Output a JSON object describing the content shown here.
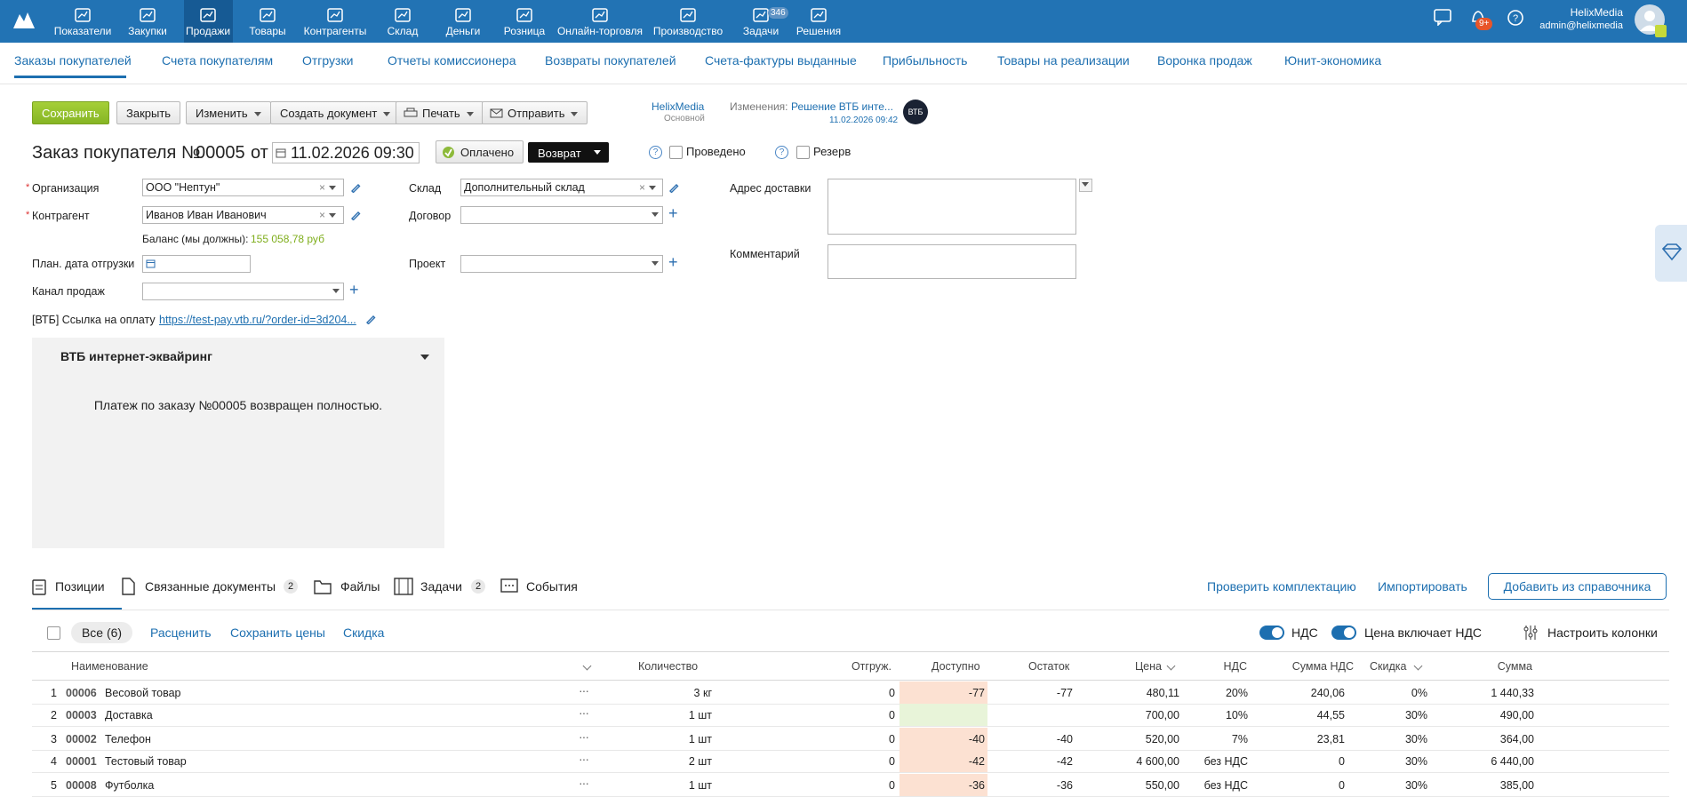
{
  "top_nav": {
    "items": [
      "Показатели",
      "Закупки",
      "Продажи",
      "Товары",
      "Контрагенты",
      "Склад",
      "Деньги",
      "Розница",
      "Онлайн-торговля",
      "Производство",
      "Задачи",
      "Решения"
    ],
    "tasks_badge": "346",
    "notifications_badge": "9+",
    "user_name": "HelixMedia",
    "user_email": "admin@helixmedia"
  },
  "sub_nav": [
    "Заказы покупателей",
    "Счета покупателям",
    "Отгрузки",
    "Отчеты комиссионера",
    "Возвраты покупателей",
    "Счета-фактуры выданные",
    "Прибыльность",
    "Товары на реализации",
    "Воронка продаж",
    "Юнит-экономика"
  ],
  "toolbar": {
    "save": "Сохранить",
    "close": "Закрыть",
    "edit": "Изменить",
    "create_document": "Создать документ",
    "print": "Печать",
    "send": "Отправить",
    "org_name": "HelixMedia",
    "org_sub": "Основной",
    "changes_label": "Изменения:",
    "changes_value": "Решение ВТБ инте...",
    "changes_date": "11.02.2026 09:42",
    "vtb_logo": "ВТБ"
  },
  "header": {
    "title": "Заказ покупателя №",
    "number": "00005",
    "from": "от",
    "date": "11.02.2026 09:30",
    "paid": "Оплачено",
    "return": "Возврат",
    "posted": "Проведено",
    "reserve": "Резерв"
  },
  "form": {
    "organization_label": "Организация",
    "organization": "ООО \"Нептун\"",
    "counterparty_label": "Контрагент",
    "counterparty": "Иванов Иван Иванович",
    "balance_label": "Баланс (мы должны):",
    "balance": "155 058,78 руб",
    "ship_date_label": "План. дата отгрузки",
    "channel_label": "Канал продаж",
    "warehouse_label": "Склад",
    "warehouse": "Дополнительный склад",
    "contract_label": "Договор",
    "project_label": "Проект",
    "address_label": "Адрес доставки",
    "comment_label": "Комментарий",
    "vtb_link_label": "[ВТБ] Ссылка на оплату",
    "vtb_link": "https://test-pay.vtb.ru/?order-id=3d204..."
  },
  "vtb_panel": {
    "title": "ВТБ интернет-эквайринг",
    "message": "Платеж по заказу №00005 возвращен полностью."
  },
  "tabs": {
    "positions": "Позиции",
    "related": "Связанные документы",
    "related_count": "2",
    "files": "Файлы",
    "tasks": "Задачи",
    "tasks_count": "2",
    "events": "События",
    "check": "Проверить комплектацию",
    "import": "Импортировать",
    "add": "Добавить из справочника"
  },
  "filters": {
    "all": "Все (6)",
    "reprice": "Расценить",
    "save_prices": "Сохранить цены",
    "discount": "Скидка",
    "vat": "НДС",
    "price_incl_vat": "Цена включает НДС",
    "columns": "Настроить колонки"
  },
  "table": {
    "columns": [
      "Наименование",
      "Количество",
      "Отгруж.",
      "Доступно",
      "Остаток",
      "Цена",
      "НДС",
      "Сумма НДС",
      "Скидка",
      "Сумма"
    ],
    "rows": [
      {
        "index": "1",
        "code": "00006",
        "name": "Весовой товар",
        "qty": "3 кг",
        "shipped": "0",
        "available": "-77",
        "remaining": "-77",
        "price": "480,11",
        "vat": "20%",
        "vat_sum": "240,06",
        "discount": "0%",
        "sum": "1 440,33"
      },
      {
        "index": "2",
        "code": "00003",
        "name": "Доставка",
        "qty": "1 шт",
        "shipped": "0",
        "available": null,
        "remaining": null,
        "price": "700,00",
        "vat": "10%",
        "vat_sum": "44,55",
        "discount": "30%",
        "sum": "490,00"
      },
      {
        "index": "3",
        "code": "00002",
        "name": "Телефон",
        "qty": "1 шт",
        "shipped": "0",
        "available": "-40",
        "remaining": "-40",
        "price": "520,00",
        "vat": "7%",
        "vat_sum": "23,81",
        "discount": "30%",
        "sum": "364,00"
      },
      {
        "index": "4",
        "code": "00001",
        "name": "Тестовый товар",
        "qty": "2 шт",
        "shipped": "0",
        "available": "-42",
        "remaining": "-42",
        "price": "4 600,00",
        "vat": "без НДС",
        "vat_sum": "0",
        "discount": "30%",
        "sum": "6 440,00"
      },
      {
        "index": "5",
        "code": "00008",
        "name": "Футболка",
        "qty": "1 шт",
        "shipped": "0",
        "available": "-36",
        "remaining": "-36",
        "price": "550,00",
        "vat": "без НДС",
        "vat_sum": "0",
        "discount": "30%",
        "sum": "385,00"
      }
    ]
  }
}
